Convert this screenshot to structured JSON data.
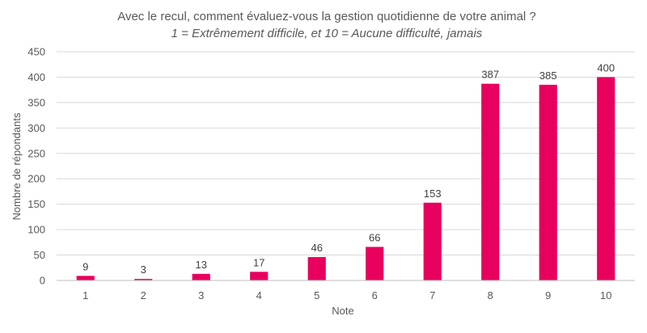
{
  "chart_data": {
    "type": "bar",
    "title": "Avec le recul, comment évaluez-vous la gestion quotidienne de votre animal ?",
    "subtitle": "1 = Extrêmement difficile, et 10 = Aucune difficulté, jamais",
    "xlabel": "Note",
    "ylabel": "Nombre de répondants",
    "categories": [
      "1",
      "2",
      "3",
      "4",
      "5",
      "6",
      "7",
      "8",
      "9",
      "10"
    ],
    "values": [
      9,
      3,
      13,
      17,
      46,
      66,
      153,
      387,
      385,
      400
    ],
    "ylim": [
      0,
      450
    ],
    "yticks": [
      0,
      50,
      100,
      150,
      200,
      250,
      300,
      350,
      400,
      450
    ],
    "grid": true,
    "legend": "none",
    "colors": {
      "bar": "#E8005E",
      "grid": "#D9D9D9",
      "text": "#595959",
      "axis": "#BFBFBF"
    }
  }
}
